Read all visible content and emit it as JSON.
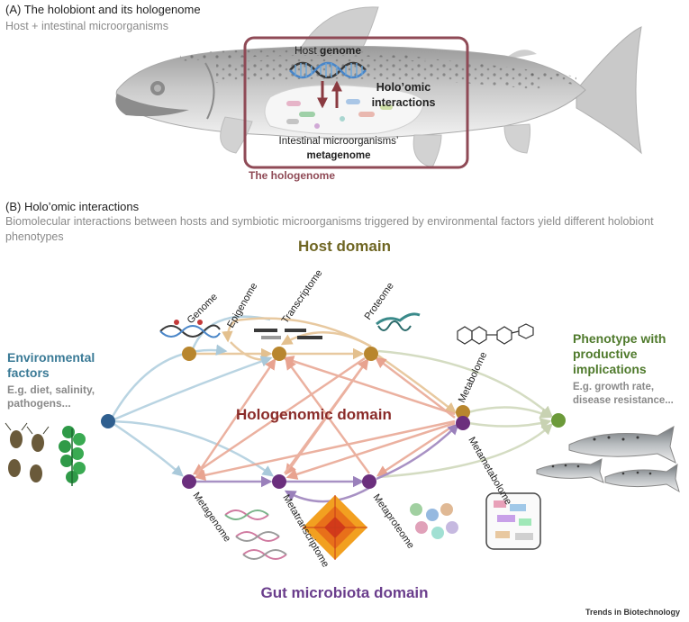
{
  "panel_a": {
    "title": "(A) The holobiont and its hologenome",
    "subtitle": "Host + intestinal microorganisms",
    "host_genome_prefix": "Host ",
    "host_genome_bold": "genome",
    "interactions_line1": "Holo’omic",
    "interactions_line2": "interactions",
    "metagenome_line1": "Intestinal microorganisms’",
    "metagenome_line2": "metagenome",
    "hologenome_label": "The hologenome"
  },
  "panel_b": {
    "title": "(B) Holo’omic interactions",
    "subtitle": "Biomolecular interactions between hosts and symbiotic microorganisms triggered by environmental factors yield different holobiont phenotypes",
    "host_domain": "Host domain",
    "gut_domain": "Gut microbiota domain",
    "hologenomic_domain": "Hologenomic domain",
    "environment_title": "Environmental factors",
    "environment_examples": "E.g. diet, salinity, pathogens...",
    "phenotype_title": "Phenotype with productive implications",
    "phenotype_examples": "E.g. growth rate, disease resistance...",
    "host_layers": [
      "Genome",
      "Epigenome",
      "Transcriptome",
      "Proteome",
      "Metabolome"
    ],
    "microbiota_layers": [
      "Metagenome",
      "Metatranscriptome",
      "Metaproteome",
      "Metametabolome"
    ]
  },
  "footer": {
    "journal": "Trends in Biotechnology"
  },
  "colors": {
    "hologenome_box": "#8f4a56",
    "host_node": "#b8862e",
    "microbe_node": "#6b2f7d",
    "env_node": "#2f5f8f",
    "pheno_node": "#6c9a3a",
    "host_arrow": "#e8c9a0",
    "holo_arrow": "#e9a996",
    "env_arrow": "#b9d4e2",
    "microbe_arrow": "#a891c4",
    "pheno_arrow": "#d4dcc2"
  }
}
